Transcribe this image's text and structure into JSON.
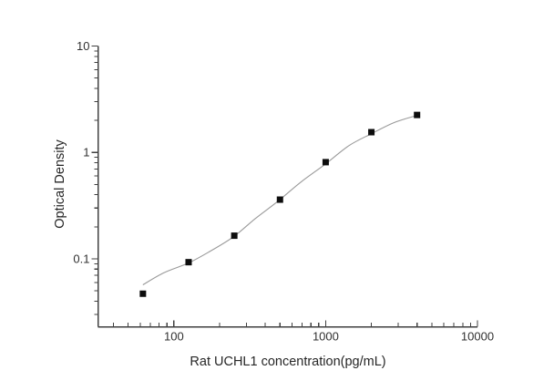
{
  "page": {
    "background": "#ffffff"
  },
  "colors": {
    "axis": "#404040",
    "tick": "#404040",
    "text": "#262626",
    "curve": "#999999",
    "marker": "#0d0d0d",
    "background": "#ffffff"
  },
  "chart_data": {
    "type": "scatter",
    "title": "",
    "xlabel": "Rat UCHL1 concentration(pg/mL)",
    "ylabel": "Optical Density",
    "grid": false,
    "legend_visible": false,
    "x_axis": {
      "scale": "log",
      "min": 31.6,
      "max": 10000,
      "major_ticks": [
        100,
        1000,
        10000
      ],
      "major_tick_labels": [
        "100",
        "1000",
        "10000"
      ],
      "minor_ticks": [
        40,
        50,
        60,
        70,
        80,
        90,
        200,
        300,
        400,
        500,
        600,
        700,
        800,
        900,
        2000,
        3000,
        4000,
        5000,
        6000,
        7000,
        8000,
        9000
      ]
    },
    "y_axis": {
      "scale": "log",
      "min": 0.023,
      "max": 10,
      "major_ticks": [
        10,
        1,
        0.1
      ],
      "major_tick_labels": [
        "10",
        "1",
        "0.1"
      ],
      "minor_ticks": [
        9,
        8,
        7,
        6,
        5,
        4,
        3,
        2,
        0.9,
        0.8,
        0.7,
        0.6,
        0.5,
        0.4,
        0.3,
        0.2,
        0.09,
        0.08,
        0.07,
        0.06,
        0.05,
        0.04,
        0.03
      ]
    },
    "series": [
      {
        "marker": "filled-square",
        "marker_size": 7,
        "points": [
          [
            62.5,
            0.047
          ],
          [
            125,
            0.093
          ],
          [
            250,
            0.165
          ],
          [
            500,
            0.36
          ],
          [
            1000,
            0.81
          ],
          [
            2000,
            1.55
          ],
          [
            4000,
            2.25
          ]
        ]
      }
    ],
    "fit_curve": [
      [
        62.5,
        0.057
      ],
      [
        86,
        0.074
      ],
      [
        124,
        0.091
      ],
      [
        172,
        0.117
      ],
      [
        247,
        0.161
      ],
      [
        344,
        0.239
      ],
      [
        492,
        0.354
      ],
      [
        686,
        0.526
      ],
      [
        1000,
        0.78
      ],
      [
        1426,
        1.16
      ],
      [
        2000,
        1.5
      ],
      [
        2805,
        1.9
      ],
      [
        4000,
        2.23
      ]
    ]
  }
}
